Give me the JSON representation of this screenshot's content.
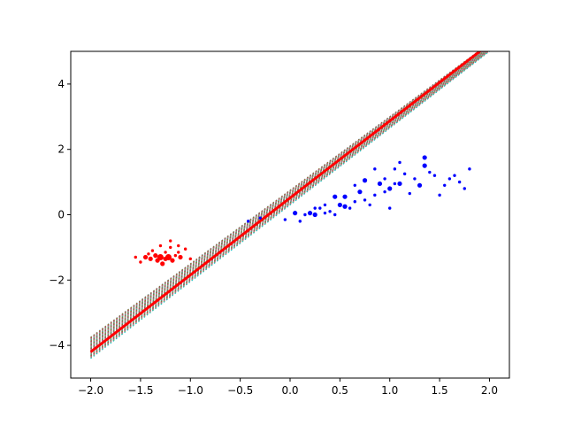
{
  "chart_data": {
    "type": "scatter",
    "title": "",
    "xlabel": "",
    "ylabel": "",
    "xlim": [
      -2.2,
      2.2
    ],
    "ylim": [
      -5,
      5
    ],
    "grid": false,
    "x_ticks": [
      {
        "value": -2.0,
        "label": "−2.0"
      },
      {
        "value": -1.5,
        "label": "−1.5"
      },
      {
        "value": -1.0,
        "label": "−1.0"
      },
      {
        "value": -0.5,
        "label": "−0.5"
      },
      {
        "value": 0.0,
        "label": "0.0"
      },
      {
        "value": 0.5,
        "label": "0.5"
      },
      {
        "value": 1.0,
        "label": "1.0"
      },
      {
        "value": 1.5,
        "label": "1.5"
      },
      {
        "value": 2.0,
        "label": "2.0"
      }
    ],
    "y_ticks": [
      {
        "value": -4,
        "label": "−4"
      },
      {
        "value": -2,
        "label": "−2"
      },
      {
        "value": 0,
        "label": "0"
      },
      {
        "value": 2,
        "label": "2"
      },
      {
        "value": 4,
        "label": "4"
      }
    ],
    "final_line": {
      "color": "#ff0000",
      "x": [
        -2.0,
        2.2
      ],
      "y": [
        -4.2,
        5.7
      ]
    },
    "intermediate_lines": {
      "style": "dotted",
      "colors": [
        "#1f77b4",
        "#ff7f0e",
        "#2ca02c",
        "#d62728",
        "#9467bd",
        "#8c564b",
        "#e377c2",
        "#7f7f7f",
        "#bcbd22",
        "#17becf"
      ],
      "slope_range": [
        2.25,
        2.35
      ],
      "intercept_range": [
        0.75,
        0.3
      ],
      "count": 60,
      "x_range": [
        -2.0,
        2.0
      ]
    },
    "series": [
      {
        "color": "#ff0000",
        "points": [
          [
            -1.55,
            -1.3
          ],
          [
            -1.5,
            -1.45
          ],
          [
            -1.45,
            -1.3
          ],
          [
            -1.42,
            -1.2
          ],
          [
            -1.4,
            -1.35
          ],
          [
            -1.38,
            -1.1
          ],
          [
            -1.35,
            -1.25
          ],
          [
            -1.33,
            -1.4
          ],
          [
            -1.3,
            -1.3
          ],
          [
            -1.28,
            -1.5
          ],
          [
            -1.25,
            -1.15
          ],
          [
            -1.25,
            -1.35
          ],
          [
            -1.22,
            -1.3
          ],
          [
            -1.2,
            -1.0
          ],
          [
            -1.18,
            -1.4
          ],
          [
            -1.15,
            -1.25
          ],
          [
            -1.12,
            -1.15
          ],
          [
            -1.1,
            -1.3
          ],
          [
            -1.05,
            -1.05
          ],
          [
            -1.0,
            -1.35
          ],
          [
            -1.3,
            -0.95
          ],
          [
            -1.2,
            -0.8
          ],
          [
            -1.12,
            -0.95
          ]
        ],
        "weights": [
          1,
          1,
          2,
          1,
          2,
          1,
          2,
          2,
          3,
          2,
          1,
          2,
          3,
          1,
          2,
          1,
          1,
          2,
          1,
          1,
          1,
          1,
          1
        ]
      },
      {
        "color": "#0000ff",
        "points": [
          [
            -0.42,
            -0.2
          ],
          [
            -0.3,
            -0.1
          ],
          [
            -0.05,
            -0.15
          ],
          [
            0.05,
            0.05
          ],
          [
            0.1,
            -0.2
          ],
          [
            0.15,
            0.0
          ],
          [
            0.2,
            0.05
          ],
          [
            0.25,
            0.0
          ],
          [
            0.3,
            0.2
          ],
          [
            0.35,
            0.05
          ],
          [
            0.4,
            0.1
          ],
          [
            0.45,
            0.0
          ],
          [
            0.5,
            0.3
          ],
          [
            0.55,
            0.25
          ],
          [
            0.6,
            0.2
          ],
          [
            0.65,
            0.4
          ],
          [
            0.7,
            0.7
          ],
          [
            0.75,
            0.45
          ],
          [
            0.8,
            0.3
          ],
          [
            0.85,
            0.6
          ],
          [
            0.9,
            0.95
          ],
          [
            0.95,
            0.7
          ],
          [
            1.0,
            0.2
          ],
          [
            1.05,
            1.4
          ],
          [
            1.1,
            0.95
          ],
          [
            1.15,
            1.25
          ],
          [
            1.2,
            0.65
          ],
          [
            1.25,
            1.1
          ],
          [
            1.3,
            0.9
          ],
          [
            1.35,
            1.75
          ],
          [
            1.4,
            1.3
          ],
          [
            1.45,
            1.2
          ],
          [
            1.5,
            0.6
          ],
          [
            1.55,
            0.9
          ],
          [
            1.6,
            1.1
          ],
          [
            1.65,
            1.2
          ],
          [
            1.7,
            1.0
          ],
          [
            1.75,
            0.8
          ],
          [
            1.8,
            1.4
          ],
          [
            0.45,
            0.55
          ],
          [
            0.55,
            0.55
          ],
          [
            0.75,
            1.05
          ],
          [
            0.85,
            1.4
          ],
          [
            1.0,
            0.8
          ],
          [
            1.1,
            1.6
          ],
          [
            1.35,
            1.5
          ],
          [
            1.05,
            0.95
          ],
          [
            0.95,
            1.1
          ],
          [
            0.65,
            0.9
          ],
          [
            0.25,
            0.2
          ],
          [
            0.35,
            0.3
          ]
        ],
        "weights": [
          1,
          1,
          1,
          2,
          1,
          1,
          2,
          2,
          1,
          1,
          1,
          1,
          2,
          2,
          1,
          1,
          2,
          1,
          1,
          1,
          2,
          1,
          1,
          1,
          2,
          1,
          1,
          1,
          2,
          2,
          1,
          1,
          1,
          1,
          1,
          1,
          1,
          1,
          1,
          2,
          2,
          2,
          1,
          2,
          1,
          2,
          1,
          1,
          1,
          1,
          1
        ]
      }
    ]
  }
}
